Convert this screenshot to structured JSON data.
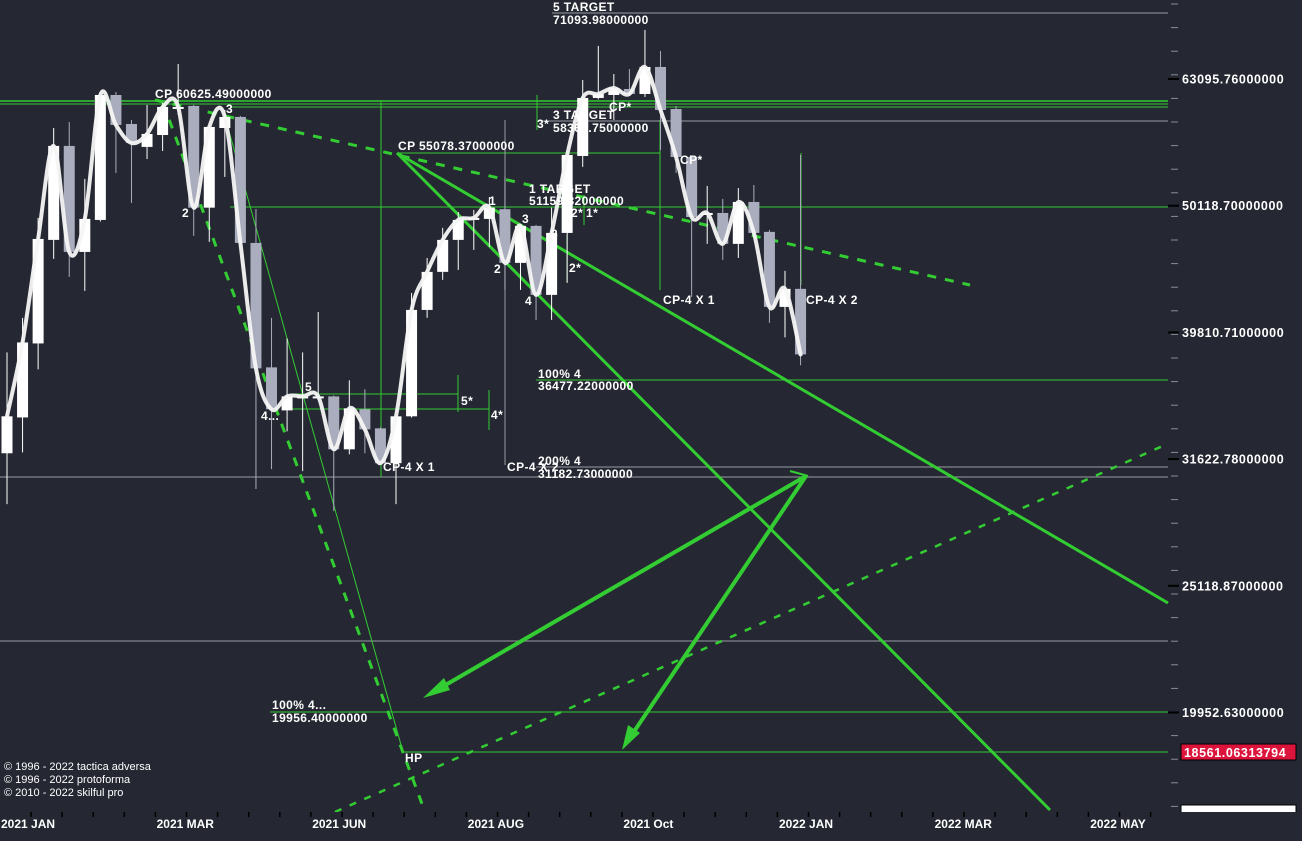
{
  "colors": {
    "background": "#252832",
    "up_candle": "#ffffff",
    "down_candle": "#aaadbd",
    "drawing_green": "#33cc33",
    "level_gray": "#9a9ca4",
    "price_badge": "#dc143c",
    "indicator_line": "#f5f5f5"
  },
  "chart_data": {
    "type": "candlestick",
    "y_scale": "log",
    "ylim": [
      16500,
      73000
    ],
    "grid": false,
    "y_ticks": [
      "63095.76000000",
      "50118.70000000",
      "39810.71000000",
      "31622.78000000",
      "25118.87000000",
      "19952.63000000"
    ],
    "y_tick_values": [
      63095.76,
      50118.7,
      39810.71,
      31622.78,
      25118.87,
      19952.63
    ],
    "current_price_label": "18561.06313794",
    "current_price_value": 18561.06313794,
    "x_ticks": [
      "2021 JAN",
      "2021 MAR",
      "2021 JUN",
      "2021 AUG",
      "2021 Oct",
      "2022 JAN",
      "2022 MAR",
      "2022 MAY"
    ],
    "candles": [
      {
        "o": 31960,
        "h": 38390,
        "l": 29140,
        "c": 34180
      },
      {
        "o": 34110,
        "h": 40880,
        "l": 32010,
        "c": 39090
      },
      {
        "o": 39020,
        "h": 49020,
        "l": 37220,
        "c": 47180
      },
      {
        "o": 47100,
        "h": 57720,
        "l": 45500,
        "c": 55870
      },
      {
        "o": 55870,
        "h": 58350,
        "l": 44040,
        "c": 46080
      },
      {
        "o": 46080,
        "h": 52620,
        "l": 42930,
        "c": 48930
      },
      {
        "o": 48840,
        "h": 61510,
        "l": 48700,
        "c": 61290
      },
      {
        "o": 61290,
        "h": 61620,
        "l": 53190,
        "c": 58040
      },
      {
        "o": 58140,
        "h": 58566,
        "l": 50370,
        "c": 56170
      },
      {
        "o": 55770,
        "h": 60190,
        "l": 54560,
        "c": 57100
      },
      {
        "o": 56990,
        "h": 60410,
        "l": 55360,
        "c": 59970
      },
      {
        "o": 59750,
        "h": 64840,
        "l": 59100,
        "c": 59970
      },
      {
        "o": 60080,
        "h": 60200,
        "l": 47440,
        "c": 49940
      },
      {
        "o": 49940,
        "h": 57900,
        "l": 46930,
        "c": 57830
      },
      {
        "o": 57720,
        "h": 59640,
        "l": 52810,
        "c": 58890
      },
      {
        "o": 58890,
        "h": 59000,
        "l": 46700,
        "c": 46840
      },
      {
        "o": 46840,
        "h": 49820,
        "l": 29950,
        "c": 37290
      },
      {
        "o": 37360,
        "h": 40880,
        "l": 31050,
        "c": 34620
      },
      {
        "o": 34550,
        "h": 39380,
        "l": 33260,
        "c": 35440
      },
      {
        "o": 35310,
        "h": 38390,
        "l": 30940,
        "c": 35440
      },
      {
        "o": 35310,
        "h": 41320,
        "l": 35250,
        "c": 35440
      },
      {
        "o": 35440,
        "h": 35500,
        "l": 28770,
        "c": 32190
      },
      {
        "o": 32190,
        "h": 36490,
        "l": 31900,
        "c": 34680
      },
      {
        "o": 34620,
        "h": 35900,
        "l": 31960,
        "c": 33380
      },
      {
        "o": 33440,
        "h": 33500,
        "l": 31300,
        "c": 31390
      },
      {
        "o": 31390,
        "h": 34250,
        "l": 29140,
        "c": 34180
      },
      {
        "o": 34180,
        "h": 42770,
        "l": 34100,
        "c": 41470
      },
      {
        "o": 41470,
        "h": 45580,
        "l": 40880,
        "c": 44440
      },
      {
        "o": 44440,
        "h": 48140,
        "l": 43800,
        "c": 47100
      },
      {
        "o": 47100,
        "h": 49550,
        "l": 44600,
        "c": 48840
      },
      {
        "o": 48840,
        "h": 49730,
        "l": 46250,
        "c": 49020
      },
      {
        "o": 48930,
        "h": 50920,
        "l": 46500,
        "c": 49940
      },
      {
        "o": 49800,
        "h": 52810,
        "l": 43010,
        "c": 45170
      },
      {
        "o": 45170,
        "h": 48400,
        "l": 43010,
        "c": 48310
      },
      {
        "o": 48310,
        "h": 48400,
        "l": 40730,
        "c": 42620
      },
      {
        "o": 42620,
        "h": 49940,
        "l": 40730,
        "c": 47700
      },
      {
        "o": 47700,
        "h": 55000,
        "l": 43560,
        "c": 54960
      },
      {
        "o": 54860,
        "h": 62980,
        "l": 53780,
        "c": 60960
      },
      {
        "o": 60960,
        "h": 67000,
        "l": 60800,
        "c": 61400
      },
      {
        "o": 61290,
        "h": 63670,
        "l": 58570,
        "c": 62070
      },
      {
        "o": 61960,
        "h": 64250,
        "l": 61200,
        "c": 61400
      },
      {
        "o": 61400,
        "h": 68980,
        "l": 61070,
        "c": 64490
      },
      {
        "o": 64490,
        "h": 66390,
        "l": 55460,
        "c": 59640
      },
      {
        "o": 59750,
        "h": 60080,
        "l": 53190,
        "c": 54760
      },
      {
        "o": 54760,
        "h": 54900,
        "l": 42470,
        "c": 49100
      },
      {
        "o": 49280,
        "h": 51950,
        "l": 46760,
        "c": 49460
      },
      {
        "o": 49460,
        "h": 50740,
        "l": 45420,
        "c": 46760
      },
      {
        "o": 46760,
        "h": 51760,
        "l": 45580,
        "c": 50460
      },
      {
        "o": 50460,
        "h": 52040,
        "l": 47600,
        "c": 47700
      },
      {
        "o": 47790,
        "h": 47960,
        "l": 40510,
        "c": 41700
      },
      {
        "o": 41700,
        "h": 44520,
        "l": 39450,
        "c": 43090
      },
      {
        "o": 43090,
        "h": 54960,
        "l": 37500,
        "c": 38250
      }
    ],
    "annotations": {
      "target5_title": "5 TARGET",
      "target5_value": "71093.98000000",
      "cp_top": "CP 60625.49000000",
      "target3_title": "3 TARGET",
      "target3_value": "58360.75000000",
      "star3": "3*",
      "cp_star1": "CP*",
      "cp_mid": "CP 55078.37000000",
      "target1_title": "1 TARGET",
      "target1_value": "51159.32000000",
      "star2a": "2*",
      "star1": "1*",
      "star2b": "2*",
      "cp_star2": "CP*",
      "wave1": "1",
      "wave2": "2",
      "wave3a": "3",
      "wave3b": "3",
      "wave4": "4",
      "wave_left2": "2",
      "wave_left3": "3",
      "cp4x1_right": "CP-4 X 1",
      "cp4x2_right": "CP-4 X 2",
      "wave5": "5",
      "wave4dots": "4...",
      "star5": "5*",
      "star4": "4*",
      "cp4x1_left": "CP-4 X 1",
      "cp4_mid": "CP-4 X 2",
      "pct100_title": "100%  4",
      "pct100_value": "36477.22000000",
      "pct200_title": "200%  4",
      "pct200_value": "31182.73000000",
      "pct100b_title": "100%  4...",
      "pct100b_value": "19956.40000000",
      "hp": "HP"
    }
  },
  "copyright": [
    "© 1996 - 2022 tactica adversa",
    "© 1996 - 2022 protoforma",
    "© 2010 - 2022 skilful pro"
  ]
}
